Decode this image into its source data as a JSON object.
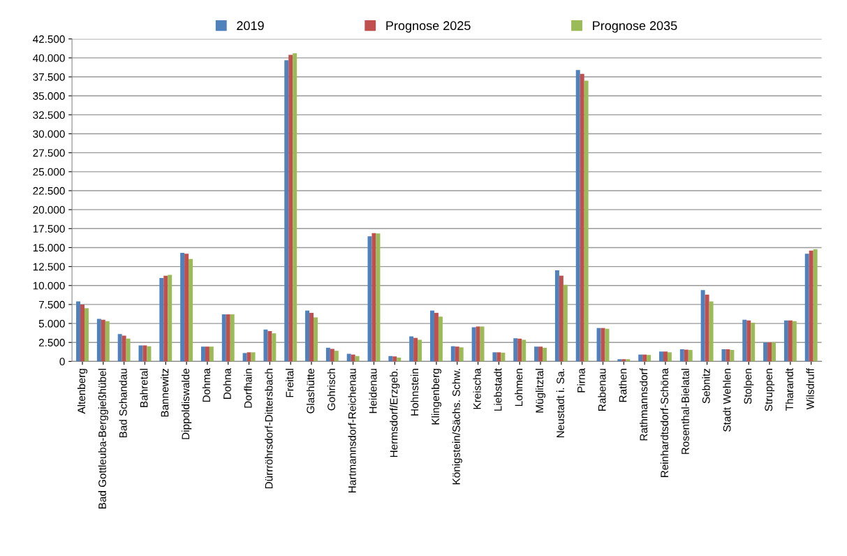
{
  "chart_data": {
    "type": "bar",
    "categories": [
      "Altenberg",
      "Bad Gottleuba-Berggießhübel",
      "Bad Schandau",
      "Bahretal",
      "Bannewitz",
      "Dippoldiswalde",
      "Dohma",
      "Dohna",
      "Dorfhain",
      "Dürrröhrsdorf-Dittersbach",
      "Freital",
      "Glashütte",
      "Gohrisch",
      "Hartmannsdorf-Reichenau",
      "Heidenau",
      "Hermsdorf/Erzgeb.",
      "Hohnstein",
      "Klingenberg",
      "Königstein/Sächs. Schw.",
      "Kreischa",
      "Liebstadt",
      "Lohmen",
      "Müglitztal",
      "Neustadt i. Sa.",
      "Pirna",
      "Rabenau",
      "Rathen",
      "Rathmannsdorf",
      "Reinhardtsdorf-Schöna",
      "Rosenthal-Bielatal",
      "Sebnitz",
      "Stadt Wehlen",
      "Stolpen",
      "Struppen",
      "Tharandt",
      "Wilsdruff"
    ],
    "series": [
      {
        "name": "2019",
        "color": "#4f81bd",
        "values": [
          7900,
          5600,
          3600,
          2100,
          11000,
          14300,
          1950,
          6200,
          1100,
          4200,
          39700,
          6700,
          1800,
          1000,
          16500,
          700,
          3300,
          6700,
          2000,
          4500,
          1200,
          3050,
          1950,
          12000,
          38400,
          4400,
          300,
          900,
          1300,
          1600,
          9400,
          1600,
          5500,
          2500,
          5400,
          14200
        ]
      },
      {
        "name": "Prognose 2025",
        "color": "#c0504d",
        "values": [
          7500,
          5500,
          3400,
          2100,
          11300,
          14200,
          1950,
          6200,
          1200,
          4000,
          40400,
          6400,
          1650,
          900,
          16900,
          650,
          3100,
          6400,
          1950,
          4600,
          1200,
          3000,
          1950,
          11300,
          37900,
          4400,
          300,
          900,
          1300,
          1550,
          8800,
          1600,
          5400,
          2500,
          5400,
          14600
        ]
      },
      {
        "name": "Prognose 2035",
        "color": "#9bbb59",
        "values": [
          7000,
          5300,
          3000,
          2000,
          11400,
          13500,
          1950,
          6200,
          1200,
          3700,
          40600,
          5800,
          1400,
          700,
          16850,
          500,
          2850,
          5900,
          1850,
          4600,
          1150,
          2850,
          1800,
          10100,
          37000,
          4300,
          300,
          850,
          1200,
          1500,
          7900,
          1500,
          5100,
          2500,
          5300,
          14800
        ]
      }
    ],
    "ylim": [
      0,
      42500
    ],
    "yticks": [
      {
        "value": 0,
        "label": "0"
      },
      {
        "value": 2500,
        "label": "2.500"
      },
      {
        "value": 5000,
        "label": "5.000"
      },
      {
        "value": 7500,
        "label": "7.500"
      },
      {
        "value": 10000,
        "label": "10.000"
      },
      {
        "value": 12500,
        "label": "12.500"
      },
      {
        "value": 15000,
        "label": "15.000"
      },
      {
        "value": 17500,
        "label": "17.500"
      },
      {
        "value": 20000,
        "label": "20.000"
      },
      {
        "value": 22500,
        "label": "22.500"
      },
      {
        "value": 25000,
        "label": "25.000"
      },
      {
        "value": 27500,
        "label": "27.500"
      },
      {
        "value": 30000,
        "label": "30.000"
      },
      {
        "value": 32500,
        "label": "32.500"
      },
      {
        "value": 35000,
        "label": "35.000"
      },
      {
        "value": 37500,
        "label": "37.500"
      },
      {
        "value": 40000,
        "label": "40.000"
      },
      {
        "value": 42500,
        "label": "42.500"
      }
    ],
    "grid": "y",
    "legend": "top"
  }
}
